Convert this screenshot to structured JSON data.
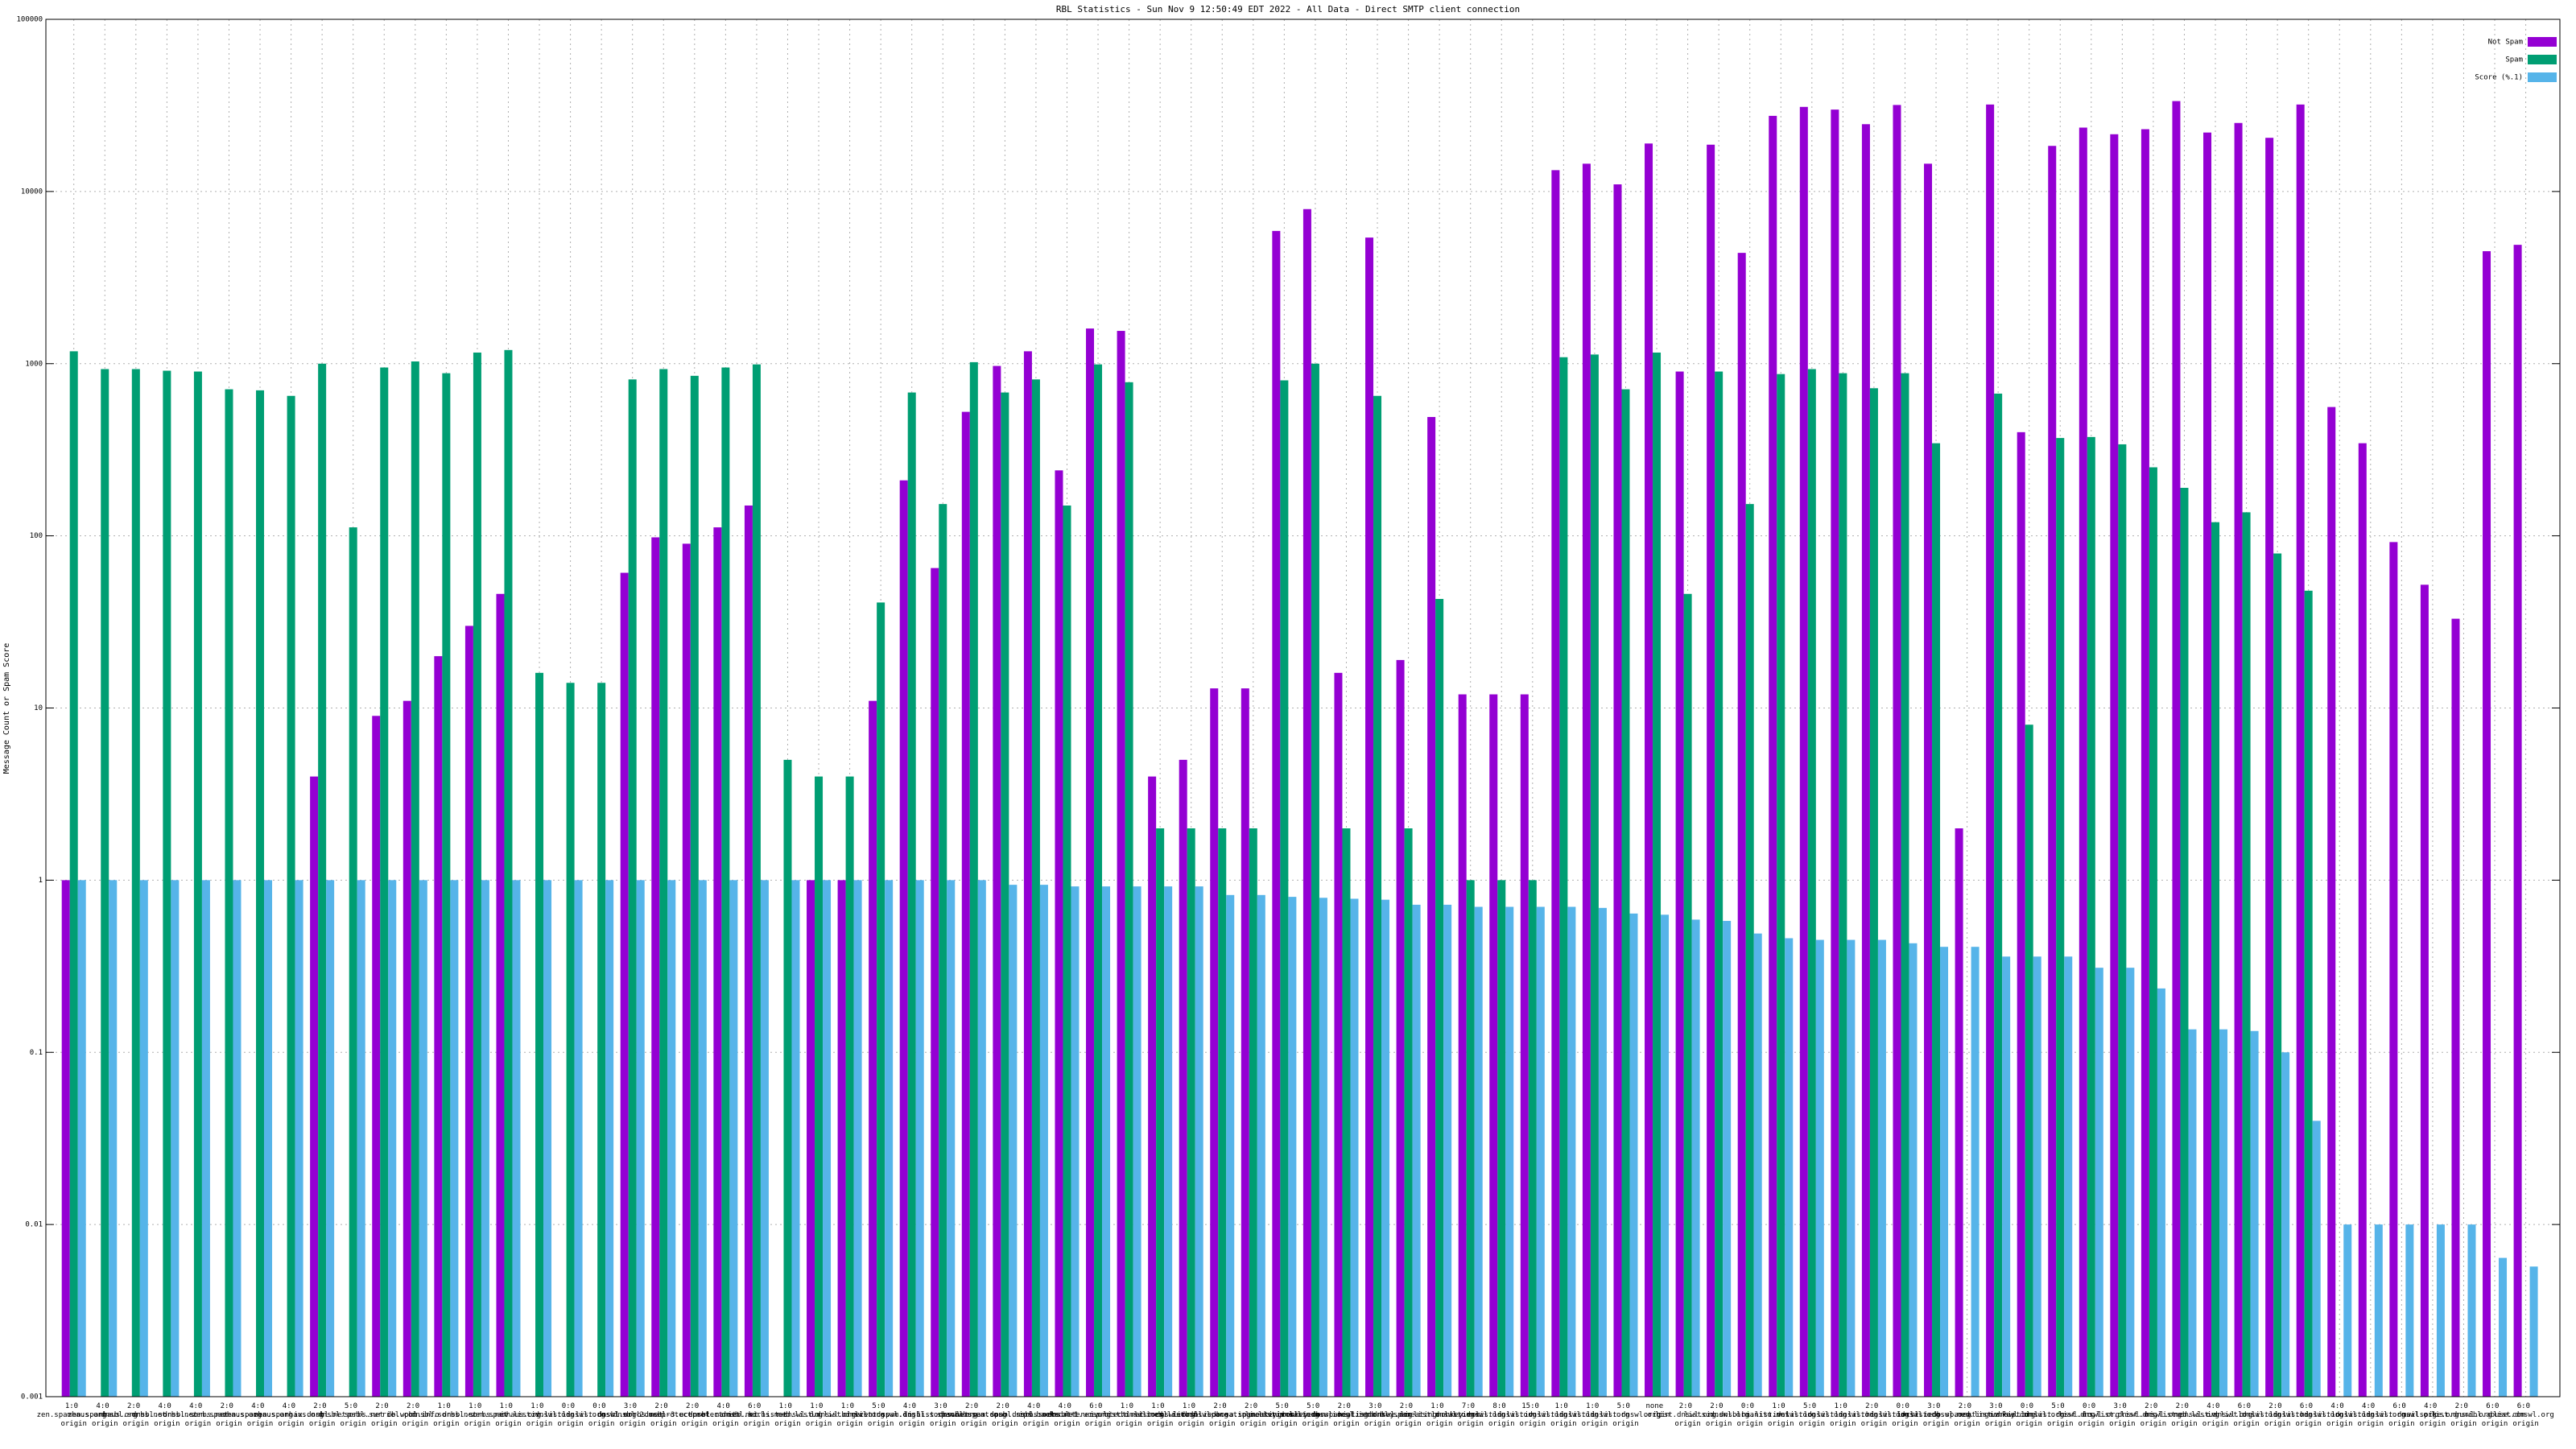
{
  "chart_data": {
    "type": "bar",
    "title": "RBL Statistics - Sun Nov  9 12:50:49 EDT 2022 - All Data - Direct SMTP client connection",
    "y_label": "Message Count or Spam Score",
    "log_scale_y": true,
    "grid": true,
    "legend": "top-right",
    "ylim": [
      0.001,
      100000
    ],
    "yticks": [
      0.001,
      0.01,
      0.1,
      1,
      10,
      100,
      1000,
      10000,
      100000
    ],
    "categories": [
      "1:0 zen.spamhaus.org origin",
      "4:0 zen.spamhaus.org origin",
      "2:0 dnsbl.sorbs.net origin",
      "4:0 dnsbl.sorbs.net origin",
      "4:0 dnsbl.sorbs.net origin",
      "2:0 zen.spamhaus.org origin",
      "4:0 zen.spamhaus.org origin",
      "4:0 zen.spamhaus.org origin",
      "2:0 ix.dnsbl.net origin",
      "5:0 dnsbl.sorbs.net origin",
      "2:0 psbl.surriel.com origin",
      "2:0 db.wpbl.info origin",
      "1:0 dnsbl.sorbs.net origin",
      "1:0 dnsbl.sorbs.net origin",
      "1:0 zen.spamhaus.org origin",
      "1:0 iv.list.dnswl.org origin",
      "0:0 iv.list.dnswl.org origin",
      "0:0 li.list.dnswl.org origin",
      "3:0 dnsbl.sorbs.net origin",
      "2:0 dnsbl-2.uceprotect.net origin",
      "2:0 dnsbl-3.uceprotect.net origin",
      "4:0 dnsbl.manitu.net origin",
      "6:0 dnsbl.sorbs.net origin",
      "1:0 hi.list.dnswl.org origin",
      "1:0 med.list.dnswl.org origin",
      "1:0 lo.list.dnswl.org origin",
      "5:0 hi.list.dnswl.org origin",
      "4:0 recent.spam.dnsbl.sorbs.net origin",
      "3:0 li.list.dnswl.org origin",
      "2:0 spam.abuseat.org origin",
      "2:0 cbl.spam.dnsbl.sorbs.net origin",
      "4:0 spam.dnsbl.sorbs.net origin",
      "4:0 ips.backscatterer.org origin",
      "6:0 dnsbl-1.uceprotect.net origin",
      "1:0 iv.list.dnswl.org origin",
      "1:0 hi.list.dnswl.org origin",
      "1:0 med.list.dnswl.org origin",
      "2:0 ircsl.iedb.bl.spameatingmonkey.com origin",
      "2:0 ircsl.iedb.sa.spameatingmonkey.com origin",
      "5:0 li.list.dnswl.org origin",
      "5:0 iv.list.dnswl.org origin",
      "2:0 ircsl.iedb.spameatingmonkey.com origin",
      "3:0 hi.list.dnswl.org origin",
      "2:0 ircsl.iedb.bl.spameatingmonkey.com origin",
      "1:0 li.list.dnswl.org origin",
      "7:0 lo.list.dnswl.org origin",
      "8:0 iv.list.dnswl.org origin",
      "15:0 li.list.dnswl.org origin",
      "1:0 iv.list.dnswl.org origin",
      "1:0 li.list.dnswl.org origin",
      "5:0 li.list.dnswl.org origin",
      "none origin",
      "2:0 list.dnswl.org origin",
      "2:0 lists.dnswl.org origin",
      "0:0 ix.dnsbl.manitu.net origin",
      "1:0 hi.list.dnswl.org origin",
      "5:0 iv.list.dnswl.org origin",
      "1:0 lo.list.dnswl.org origin",
      "2:0 li.list.dnswl.org origin",
      "0:0 hi.list.dnswl.org origin",
      "3:0 lo.list.dnswl.org origin",
      "2:0 ircsl.iedb.spameatingmonkey.com origin",
      "3:0 med.list.dnswl.org origin",
      "0:0 iv.list.dnswl.org origin",
      "5:0 li.list.dnswl.org origin",
      "0:0 list.dnswl.org origin",
      "3:0 lo.list.dnswl.org origin",
      "2:0 list.dnswl.org origin",
      "2:0 hi.list.dnswl.org origin",
      "4:0 med.list.dnswl.org origin",
      "6:0 iv.list.dnswl.org origin",
      "2:0 lo.list.dnswl.org origin",
      "6:0 li.list.dnswl.org origin",
      "4:0 hi.list.dnswl.org origin",
      "4:0 lo.list.dnswl.org origin",
      "6:0 li.list.dnswl.org origin",
      "4:0 mailspike.org origin",
      "2:0 list.dnswl.org origin",
      "6:0 uribl.abuse.com origin",
      "6:0 list.dnswl.org origin"
    ],
    "series": [
      {
        "name": "Not Spam",
        "color": "#9400d3",
        "values": [
          1,
          null,
          null,
          null,
          null,
          null,
          null,
          null,
          4,
          null,
          9,
          11,
          20,
          30,
          46,
          null,
          null,
          null,
          61,
          98,
          90,
          112,
          150,
          null,
          1,
          1,
          11,
          210,
          65,
          525,
          970,
          1180,
          240,
          1600,
          1550,
          4,
          5,
          13,
          13,
          5900,
          7900,
          16,
          5400,
          19,
          490,
          12,
          12,
          12,
          13300,
          14500,
          11000,
          19000,
          900,
          18700,
          4400,
          27500,
          31000,
          29900,
          24600,
          31800,
          14500,
          2,
          32000,
          400,
          18400,
          23500,
          21500,
          23000,
          33500,
          22000,
          25000,
          20500,
          32000,
          560,
          345,
          92,
          52,
          33,
          4500,
          4900
        ]
      },
      {
        "name": "Spam",
        "color": "#009e73",
        "values": [
          1180,
          930,
          930,
          910,
          900,
          710,
          700,
          650,
          1000,
          112,
          950,
          1030,
          880,
          1160,
          1200,
          16,
          14,
          14,
          810,
          930,
          850,
          950,
          990,
          5,
          4,
          4,
          41,
          680,
          153,
          1020,
          680,
          810,
          150,
          990,
          780,
          2,
          2,
          2,
          2,
          800,
          1000,
          2,
          650,
          2,
          43,
          1,
          1,
          1,
          1090,
          1130,
          710,
          1160,
          46,
          900,
          153,
          870,
          930,
          880,
          720,
          880,
          345,
          null,
          670,
          8,
          370,
          375,
          340,
          250,
          190,
          120,
          137,
          79,
          48,
          null,
          null,
          null,
          null,
          null,
          null,
          null
        ]
      },
      {
        "name": "Score (%.1)",
        "color": "#56b4e9",
        "values": [
          1,
          1,
          1,
          1,
          1,
          1,
          1,
          1,
          1,
          1,
          1,
          1,
          1,
          1,
          1,
          1,
          1,
          1,
          1,
          1,
          1,
          1,
          1,
          1,
          1,
          1,
          1,
          1,
          1,
          1,
          0.94,
          0.94,
          0.92,
          0.92,
          0.92,
          0.92,
          0.92,
          0.82,
          0.82,
          0.8,
          0.79,
          0.78,
          0.77,
          0.72,
          0.72,
          0.7,
          0.7,
          0.7,
          0.7,
          0.69,
          0.64,
          0.63,
          0.59,
          0.58,
          0.49,
          0.46,
          0.45,
          0.45,
          0.45,
          0.43,
          0.41,
          0.41,
          0.36,
          0.36,
          0.36,
          0.31,
          0.31,
          0.235,
          0.136,
          0.136,
          0.133,
          0.1,
          0.04,
          0.01,
          0.01,
          0.01,
          0.01,
          0.01,
          0.0064,
          0.0057
        ]
      }
    ]
  }
}
